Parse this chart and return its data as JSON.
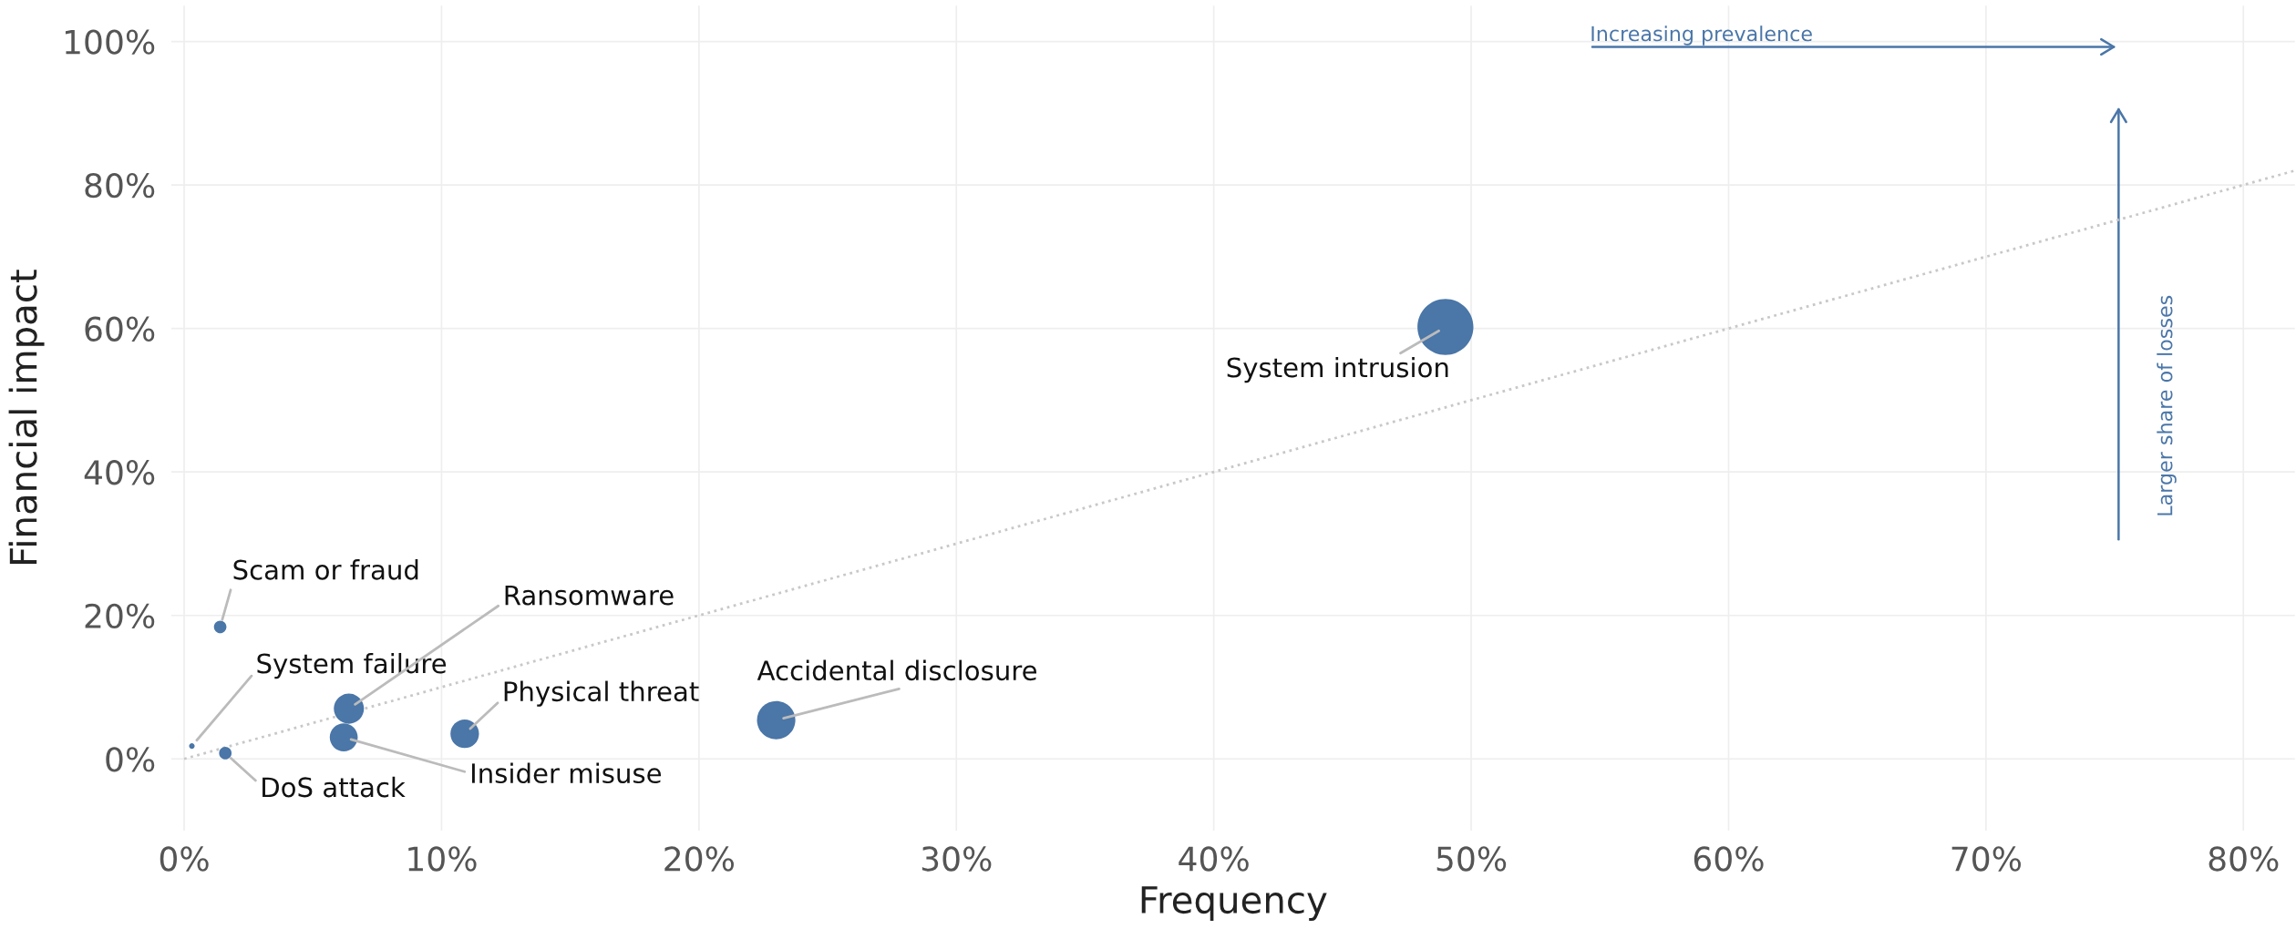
{
  "chart_data": {
    "type": "bubble",
    "xlabel": "Frequency",
    "ylabel": "Financial impact",
    "x": [
      1.4,
      0.3,
      1.6,
      6.4,
      6.2,
      10.9,
      23.0,
      49.0
    ],
    "series": [
      {
        "color": "#4a76a8",
        "values": [
          18.4,
          1.8,
          0.8,
          7.0,
          3.0,
          3.5,
          5.4,
          60.2
        ],
        "sizes": [
          0.05,
          0.01,
          0.05,
          0.29,
          0.25,
          0.26,
          0.47,
          1
        ]
      },
      {
        "type": "line",
        "color": "#c8c8c8",
        "line_style": "dotted",
        "x": [
          0,
          82
        ],
        "values": [
          0,
          82
        ]
      }
    ],
    "xlim": [
      -0.5,
      82
    ],
    "ylim": [
      -10,
      105
    ],
    "xticks": [
      {
        "value": 0,
        "label": "0%"
      },
      {
        "value": 10,
        "label": "10%"
      },
      {
        "value": 20,
        "label": "20%"
      },
      {
        "value": 30,
        "label": "30%"
      },
      {
        "value": 40,
        "label": "40%"
      },
      {
        "value": 50,
        "label": "50%"
      },
      {
        "value": 60,
        "label": "60%"
      },
      {
        "value": 70,
        "label": "70%"
      },
      {
        "value": 80,
        "label": "80%"
      }
    ],
    "yticks": [
      {
        "value": 0,
        "label": "0%"
      },
      {
        "value": 20,
        "label": "20%"
      },
      {
        "value": 40,
        "label": "40%"
      },
      {
        "value": 60,
        "label": "60%"
      },
      {
        "value": 80,
        "label": "80%"
      },
      {
        "value": 100,
        "label": "100%"
      }
    ],
    "grid": true,
    "annotations": [
      {
        "text": "Scam or fraud",
        "x": 1.4,
        "y": 18.4
      },
      {
        "text": "System failure",
        "x": 0.3,
        "y": 1.8
      },
      {
        "text": "DoS attack",
        "x": 1.6,
        "y": 0.8
      },
      {
        "text": "Ransomware",
        "x": 6.4,
        "y": 7.0
      },
      {
        "text": "Insider misuse",
        "x": 6.2,
        "y": 3.0
      },
      {
        "text": "Physical threat",
        "x": 10.9,
        "y": 3.5
      },
      {
        "text": "Accidental disclosure",
        "x": 23.0,
        "y": 5.4
      },
      {
        "text": "System intrusion",
        "x": 49.0,
        "y": 60.2
      },
      "Increasing prevalence",
      "Larger share of losses"
    ]
  }
}
